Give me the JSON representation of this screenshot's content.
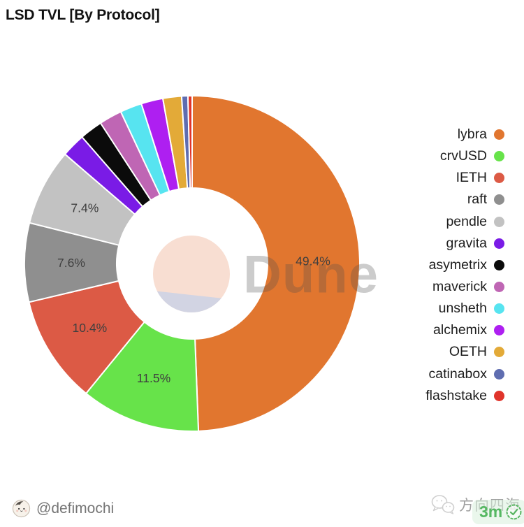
{
  "title": "LSD TVL [By Protocol]",
  "watermark": "Dune",
  "chart_data": {
    "type": "pie",
    "donut": true,
    "title": "LSD TVL [By Protocol]",
    "categories": [
      "lybra",
      "crvUSD",
      "IETH",
      "raft",
      "pendle",
      "gravita",
      "asymetrix",
      "maverick",
      "unsheth",
      "alchemix",
      "OETH",
      "catinabox",
      "flashstake"
    ],
    "values": [
      49.4,
      11.5,
      10.4,
      7.6,
      7.4,
      2.3,
      2.2,
      2.2,
      2.1,
      2.1,
      1.8,
      0.6,
      0.4
    ],
    "unit": "%",
    "colors": [
      "#E1762F",
      "#67E34A",
      "#DC5A45",
      "#8F8F8F",
      "#C2C2C2",
      "#7A1BE6",
      "#0B0B0B",
      "#BF66B4",
      "#57E4F0",
      "#AE1FF1",
      "#E3AA38",
      "#5F6DB0",
      "#E0342B"
    ],
    "value_labels": [
      "49.4%",
      "11.5%",
      "10.4%",
      "7.6%",
      "7.4%",
      null,
      null,
      null,
      null,
      null,
      null,
      null,
      null
    ],
    "legend_position": "right",
    "start_angle": "top",
    "direction": "clockwise",
    "grid": false,
    "center_logo_colors": [
      "#F8DED2",
      "#D2D4E3"
    ]
  },
  "footer": {
    "handle": "@defimochi",
    "source_name": "方向四海",
    "badge_text": "3m"
  }
}
